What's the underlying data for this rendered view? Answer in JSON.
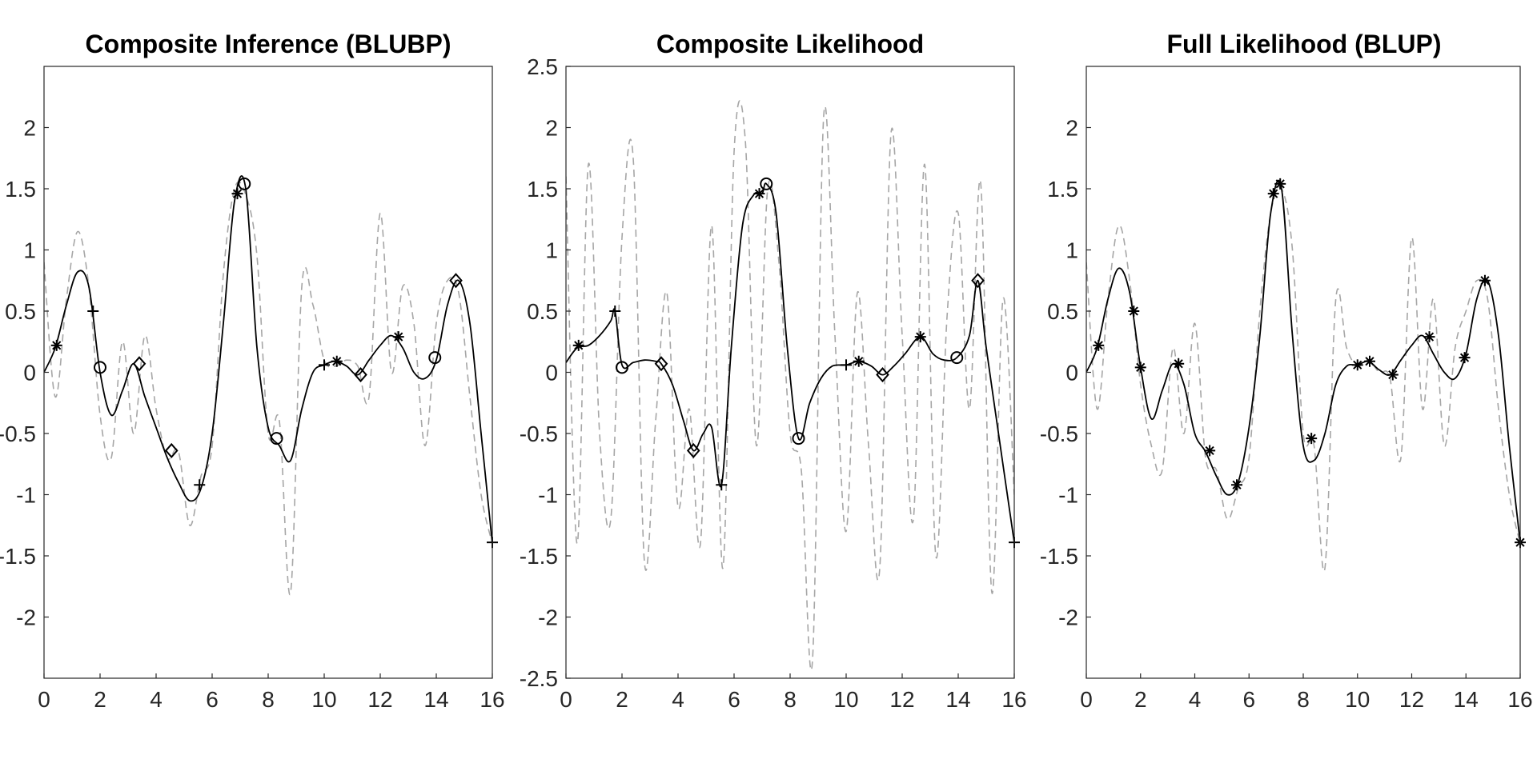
{
  "chart_data": [
    {
      "type": "line",
      "title": "Composite Inference (BLUBP)",
      "xlim": [
        0,
        16
      ],
      "ylim": [
        -2.5,
        2.5
      ],
      "xticks": [
        "0",
        "2",
        "4",
        "6",
        "8",
        "10",
        "12",
        "14",
        "16"
      ],
      "yticks": [
        "-2",
        "-1.5",
        "-1",
        "-0.5",
        "0",
        "0.5",
        "1",
        "1.5",
        "2"
      ],
      "series": [
        {
          "style": "dashed-gray",
          "x": [
            0,
            0.4,
            0.8,
            1.2,
            1.6,
            2.0,
            2.4,
            2.8,
            3.2,
            3.6,
            4.0,
            4.4,
            4.8,
            5.2,
            5.6,
            6.0,
            6.4,
            6.8,
            7.2,
            7.6,
            8.0,
            8.4,
            8.8,
            9.2,
            9.6,
            10.0,
            10.4,
            10.8,
            11.2,
            11.6,
            12.0,
            12.4,
            12.8,
            13.2,
            13.6,
            14.0,
            14.4,
            14.8,
            15.2,
            15.6,
            16.0
          ],
          "y": [
            0.9,
            -0.2,
            0.6,
            1.15,
            0.7,
            -0.35,
            -0.7,
            0.25,
            -0.5,
            0.3,
            -0.3,
            -0.7,
            -0.65,
            -1.25,
            -0.85,
            -0.6,
            0.8,
            1.5,
            1.45,
            0.95,
            -0.5,
            -0.4,
            -1.8,
            0.7,
            0.55,
            0.1,
            0.05,
            0.1,
            0.05,
            -0.2,
            1.3,
            0.0,
            0.7,
            0.4,
            -0.6,
            0.4,
            0.75,
            0.65,
            -0.2,
            -1.0,
            -1.4
          ]
        },
        {
          "style": "solid-black",
          "x": [
            0,
            0.4,
            0.8,
            1.2,
            1.6,
            2.0,
            2.4,
            2.8,
            3.2,
            3.6,
            4.0,
            4.4,
            4.8,
            5.2,
            5.6,
            6.0,
            6.4,
            6.8,
            7.2,
            7.6,
            8.0,
            8.4,
            8.8,
            9.2,
            9.6,
            10.0,
            10.4,
            10.8,
            11.2,
            11.6,
            12.0,
            12.4,
            12.8,
            13.2,
            13.6,
            14.0,
            14.4,
            14.8,
            15.2,
            15.6,
            16.0
          ],
          "y": [
            0.0,
            0.2,
            0.55,
            0.82,
            0.7,
            0.0,
            -0.35,
            -0.15,
            0.07,
            -0.2,
            -0.45,
            -0.7,
            -0.9,
            -1.05,
            -0.95,
            -0.5,
            0.4,
            1.4,
            1.5,
            0.2,
            -0.45,
            -0.6,
            -0.72,
            -0.3,
            0.0,
            0.06,
            0.09,
            0.05,
            -0.02,
            0.1,
            0.22,
            0.3,
            0.2,
            0.0,
            -0.05,
            0.1,
            0.55,
            0.75,
            0.4,
            -0.5,
            -1.4
          ]
        }
      ],
      "markers": [
        {
          "symbol": "asterisk",
          "x": 0.45,
          "y": 0.22
        },
        {
          "symbol": "plus",
          "x": 1.75,
          "y": 0.5
        },
        {
          "symbol": "circle",
          "x": 2.0,
          "y": 0.04
        },
        {
          "symbol": "diamond",
          "x": 3.4,
          "y": 0.07
        },
        {
          "symbol": "diamond",
          "x": 4.55,
          "y": -0.64
        },
        {
          "symbol": "plus",
          "x": 5.55,
          "y": -0.92
        },
        {
          "symbol": "asterisk",
          "x": 6.9,
          "y": 1.46
        },
        {
          "symbol": "circle",
          "x": 7.15,
          "y": 1.54
        },
        {
          "symbol": "circle",
          "x": 8.3,
          "y": -0.54
        },
        {
          "symbol": "plus",
          "x": 10.0,
          "y": 0.06
        },
        {
          "symbol": "asterisk",
          "x": 10.45,
          "y": 0.09
        },
        {
          "symbol": "diamond",
          "x": 11.3,
          "y": -0.02
        },
        {
          "symbol": "asterisk",
          "x": 12.65,
          "y": 0.29
        },
        {
          "symbol": "circle",
          "x": 13.95,
          "y": 0.12
        },
        {
          "symbol": "diamond",
          "x": 14.7,
          "y": 0.75
        },
        {
          "symbol": "plus",
          "x": 16.0,
          "y": -1.39
        }
      ]
    },
    {
      "type": "line",
      "title": "Composite Likelihood",
      "xlim": [
        0,
        16
      ],
      "ylim": [
        -2.5,
        2.5
      ],
      "xticks": [
        "0",
        "2",
        "4",
        "6",
        "8",
        "10",
        "12",
        "14",
        "16"
      ],
      "yticks": [
        "-2.5",
        "-2",
        "-1.5",
        "-1",
        "-0.5",
        "0",
        "0.5",
        "1",
        "1.5",
        "2",
        "2.5"
      ],
      "series": [
        {
          "style": "dashed-gray",
          "x": [
            0,
            0.4,
            0.8,
            1.2,
            1.6,
            2.0,
            2.4,
            2.8,
            3.2,
            3.6,
            4.0,
            4.4,
            4.8,
            5.2,
            5.6,
            6.0,
            6.4,
            6.8,
            7.2,
            7.6,
            8.0,
            8.4,
            8.8,
            9.2,
            9.6,
            10.0,
            10.4,
            10.8,
            11.2,
            11.6,
            12.0,
            12.4,
            12.8,
            13.2,
            13.6,
            14.0,
            14.4,
            14.8,
            15.2,
            15.6,
            16.0
          ],
          "y": [
            1.6,
            -1.4,
            1.7,
            -0.5,
            -1.2,
            1.1,
            1.75,
            -1.55,
            -0.4,
            0.65,
            -1.1,
            -0.3,
            -1.4,
            1.2,
            -1.6,
            1.8,
            1.9,
            -0.6,
            1.5,
            0.9,
            -0.5,
            -0.8,
            -2.35,
            2.1,
            0.3,
            -1.3,
            0.65,
            -0.6,
            -1.6,
            1.95,
            0.3,
            -1.2,
            1.7,
            -1.5,
            0.45,
            1.3,
            -0.3,
            1.55,
            -1.8,
            0.6,
            -1.0
          ]
        },
        {
          "style": "solid-black",
          "x": [
            0,
            0.4,
            0.8,
            1.2,
            1.6,
            1.75,
            2.0,
            2.4,
            2.8,
            3.2,
            3.4,
            3.8,
            4.2,
            4.55,
            4.9,
            5.2,
            5.55,
            5.9,
            6.3,
            6.7,
            7.0,
            7.15,
            7.5,
            7.9,
            8.3,
            8.7,
            9.1,
            9.5,
            10.0,
            10.45,
            10.9,
            11.3,
            11.7,
            12.1,
            12.65,
            13.1,
            13.5,
            13.95,
            14.4,
            14.7,
            15.0,
            15.5,
            16.0
          ],
          "y": [
            0.08,
            0.2,
            0.22,
            0.3,
            0.42,
            0.5,
            0.06,
            0.08,
            0.1,
            0.09,
            0.07,
            -0.1,
            -0.4,
            -0.64,
            -0.5,
            -0.45,
            -0.92,
            0.2,
            1.2,
            1.45,
            1.46,
            1.54,
            1.3,
            0.2,
            -0.54,
            -0.25,
            -0.05,
            0.05,
            0.06,
            0.09,
            0.05,
            -0.02,
            0.05,
            0.15,
            0.29,
            0.15,
            0.1,
            0.12,
            0.3,
            0.75,
            0.2,
            -0.6,
            -1.39
          ]
        }
      ],
      "markers": [
        {
          "symbol": "asterisk",
          "x": 0.45,
          "y": 0.22
        },
        {
          "symbol": "plus",
          "x": 1.75,
          "y": 0.5
        },
        {
          "symbol": "circle",
          "x": 2.0,
          "y": 0.04
        },
        {
          "symbol": "diamond",
          "x": 3.4,
          "y": 0.07
        },
        {
          "symbol": "diamond",
          "x": 4.55,
          "y": -0.64
        },
        {
          "symbol": "plus",
          "x": 5.55,
          "y": -0.92
        },
        {
          "symbol": "asterisk",
          "x": 6.9,
          "y": 1.46
        },
        {
          "symbol": "circle",
          "x": 7.15,
          "y": 1.54
        },
        {
          "symbol": "circle",
          "x": 8.3,
          "y": -0.54
        },
        {
          "symbol": "plus",
          "x": 10.0,
          "y": 0.06
        },
        {
          "symbol": "asterisk",
          "x": 10.45,
          "y": 0.09
        },
        {
          "symbol": "diamond",
          "x": 11.3,
          "y": -0.02
        },
        {
          "symbol": "asterisk",
          "x": 12.65,
          "y": 0.29
        },
        {
          "symbol": "circle",
          "x": 13.95,
          "y": 0.12
        },
        {
          "symbol": "diamond",
          "x": 14.7,
          "y": 0.75
        },
        {
          "symbol": "plus",
          "x": 16.0,
          "y": -1.39
        }
      ]
    },
    {
      "type": "line",
      "title": "Full Likelihood (BLUP)",
      "xlim": [
        0,
        16
      ],
      "ylim": [
        -2.5,
        2.5
      ],
      "xticks": [
        "0",
        "2",
        "4",
        "6",
        "8",
        "10",
        "12",
        "14",
        "16"
      ],
      "yticks": [
        "-2",
        "-1.5",
        "-1",
        "-0.5",
        "0",
        "0.5",
        "1",
        "1.5",
        "2"
      ],
      "series": [
        {
          "style": "dashed-gray",
          "x": [
            0,
            0.4,
            0.8,
            1.2,
            1.6,
            2.0,
            2.4,
            2.8,
            3.2,
            3.6,
            4.0,
            4.4,
            4.8,
            5.2,
            5.6,
            6.0,
            6.4,
            6.8,
            7.2,
            7.6,
            8.0,
            8.4,
            8.8,
            9.2,
            9.6,
            10.0,
            10.4,
            10.8,
            11.2,
            11.6,
            12.0,
            12.4,
            12.8,
            13.2,
            13.6,
            14.0,
            14.4,
            14.8,
            15.2,
            15.6,
            16.0
          ],
          "y": [
            0.9,
            -0.3,
            0.6,
            1.2,
            0.75,
            -0.1,
            -0.6,
            -0.8,
            0.2,
            -0.5,
            0.4,
            -0.7,
            -0.8,
            -1.2,
            -0.95,
            -0.7,
            0.5,
            1.3,
            1.5,
            1.0,
            -0.5,
            -0.6,
            -1.6,
            0.6,
            0.2,
            0.05,
            0.1,
            0.0,
            -0.05,
            -0.7,
            1.1,
            -0.3,
            0.6,
            -0.6,
            0.2,
            0.5,
            0.75,
            0.6,
            -0.3,
            -1.0,
            -1.4
          ]
        },
        {
          "style": "solid-black",
          "x": [
            0,
            0.4,
            0.8,
            1.2,
            1.6,
            2.0,
            2.4,
            2.8,
            3.2,
            3.6,
            4.0,
            4.4,
            4.8,
            5.2,
            5.6,
            6.0,
            6.4,
            6.8,
            7.2,
            7.6,
            8.0,
            8.4,
            8.8,
            9.2,
            9.6,
            10.0,
            10.4,
            10.8,
            11.2,
            11.6,
            12.0,
            12.4,
            12.8,
            13.2,
            13.6,
            14.0,
            14.4,
            14.8,
            15.2,
            15.6,
            16.0
          ],
          "y": [
            0.0,
            0.2,
            0.6,
            0.85,
            0.65,
            0.04,
            -0.38,
            -0.15,
            0.07,
            -0.1,
            -0.5,
            -0.65,
            -0.85,
            -1.0,
            -0.9,
            -0.45,
            0.3,
            1.3,
            1.5,
            0.3,
            -0.6,
            -0.72,
            -0.5,
            -0.1,
            0.05,
            0.06,
            0.09,
            0.02,
            -0.02,
            0.1,
            0.22,
            0.3,
            0.15,
            0.0,
            -0.05,
            0.15,
            0.6,
            0.75,
            0.3,
            -0.6,
            -1.39
          ]
        }
      ],
      "markers": [
        {
          "symbol": "asterisk",
          "x": 0.45,
          "y": 0.22
        },
        {
          "symbol": "asterisk",
          "x": 1.75,
          "y": 0.5
        },
        {
          "symbol": "asterisk",
          "x": 2.0,
          "y": 0.04
        },
        {
          "symbol": "asterisk",
          "x": 3.4,
          "y": 0.07
        },
        {
          "symbol": "asterisk",
          "x": 4.55,
          "y": -0.64
        },
        {
          "symbol": "asterisk",
          "x": 5.55,
          "y": -0.92
        },
        {
          "symbol": "asterisk",
          "x": 6.9,
          "y": 1.46
        },
        {
          "symbol": "asterisk",
          "x": 7.15,
          "y": 1.54
        },
        {
          "symbol": "asterisk",
          "x": 8.3,
          "y": -0.54
        },
        {
          "symbol": "asterisk",
          "x": 10.0,
          "y": 0.06
        },
        {
          "symbol": "asterisk",
          "x": 10.45,
          "y": 0.09
        },
        {
          "symbol": "asterisk",
          "x": 11.3,
          "y": -0.02
        },
        {
          "symbol": "asterisk",
          "x": 12.65,
          "y": 0.29
        },
        {
          "symbol": "asterisk",
          "x": 13.95,
          "y": 0.12
        },
        {
          "symbol": "asterisk",
          "x": 14.7,
          "y": 0.75
        },
        {
          "symbol": "asterisk",
          "x": 16.0,
          "y": -1.39
        }
      ]
    }
  ]
}
